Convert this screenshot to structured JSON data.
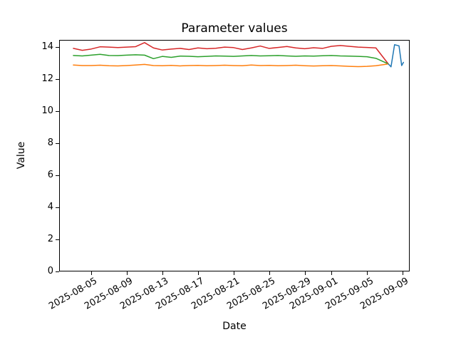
{
  "figure": {
    "background_color": "#ffffff",
    "axes_edge_color": "#000000"
  },
  "chart_data": {
    "type": "line",
    "title": "Parameter values",
    "xlabel": "Date",
    "ylabel": "Value",
    "grid": false,
    "legend_position": "none",
    "ylim": [
      0,
      14.45
    ],
    "y_ticks": [
      0,
      2,
      4,
      6,
      8,
      10,
      12,
      14
    ],
    "x_axis_note": "x values are day offsets from 2025-08-05",
    "xlim_day_offsets": [
      -3.6,
      35.8
    ],
    "x_ticks": [
      {
        "label": "2025-08-05",
        "day": 0
      },
      {
        "label": "2025-08-09",
        "day": 4
      },
      {
        "label": "2025-08-13",
        "day": 8
      },
      {
        "label": "2025-08-17",
        "day": 12
      },
      {
        "label": "2025-08-21",
        "day": 16
      },
      {
        "label": "2025-08-25",
        "day": 20
      },
      {
        "label": "2025-08-29",
        "day": 24
      },
      {
        "label": "2025-09-01",
        "day": 27
      },
      {
        "label": "2025-09-05",
        "day": 31
      },
      {
        "label": "2025-09-09",
        "day": 35
      }
    ],
    "series": [
      {
        "name": "red-line",
        "color": "#d62728",
        "points": [
          [
            -2,
            13.92
          ],
          [
            -1,
            13.8
          ],
          [
            0,
            13.88
          ],
          [
            1,
            14.02
          ],
          [
            2,
            14.0
          ],
          [
            3,
            13.97
          ],
          [
            4,
            14.0
          ],
          [
            5,
            14.03
          ],
          [
            6,
            14.28
          ],
          [
            7,
            13.95
          ],
          [
            8,
            13.82
          ],
          [
            9,
            13.88
          ],
          [
            10,
            13.92
          ],
          [
            11,
            13.85
          ],
          [
            12,
            13.95
          ],
          [
            13,
            13.9
          ],
          [
            14,
            13.93
          ],
          [
            15,
            14.0
          ],
          [
            16,
            13.97
          ],
          [
            17,
            13.85
          ],
          [
            18,
            13.95
          ],
          [
            19,
            14.07
          ],
          [
            20,
            13.92
          ],
          [
            21,
            13.98
          ],
          [
            22,
            14.04
          ],
          [
            23,
            13.95
          ],
          [
            24,
            13.9
          ],
          [
            25,
            13.96
          ],
          [
            26,
            13.92
          ],
          [
            27,
            14.05
          ],
          [
            28,
            14.1
          ],
          [
            29,
            14.05
          ],
          [
            30,
            14.0
          ],
          [
            31,
            13.98
          ],
          [
            32,
            13.95
          ],
          [
            33.4,
            12.95
          ]
        ]
      },
      {
        "name": "green-line",
        "color": "#2ca02c",
        "points": [
          [
            -2,
            13.48
          ],
          [
            -1,
            13.45
          ],
          [
            0,
            13.5
          ],
          [
            1,
            13.55
          ],
          [
            2,
            13.48
          ],
          [
            3,
            13.47
          ],
          [
            4,
            13.5
          ],
          [
            5,
            13.52
          ],
          [
            6,
            13.5
          ],
          [
            7,
            13.28
          ],
          [
            8,
            13.42
          ],
          [
            9,
            13.36
          ],
          [
            10,
            13.44
          ],
          [
            11,
            13.43
          ],
          [
            12,
            13.4
          ],
          [
            13,
            13.42
          ],
          [
            14,
            13.45
          ],
          [
            15,
            13.44
          ],
          [
            16,
            13.42
          ],
          [
            17,
            13.45
          ],
          [
            18,
            13.48
          ],
          [
            19,
            13.45
          ],
          [
            20,
            13.46
          ],
          [
            21,
            13.48
          ],
          [
            22,
            13.45
          ],
          [
            23,
            13.43
          ],
          [
            24,
            13.45
          ],
          [
            25,
            13.44
          ],
          [
            26,
            13.46
          ],
          [
            27,
            13.48
          ],
          [
            28,
            13.45
          ],
          [
            29,
            13.44
          ],
          [
            30,
            13.42
          ],
          [
            31,
            13.4
          ],
          [
            32,
            13.3
          ],
          [
            33.4,
            12.95
          ]
        ]
      },
      {
        "name": "orange-line",
        "color": "#ff7f0e",
        "points": [
          [
            -2,
            12.88
          ],
          [
            -1,
            12.85
          ],
          [
            0,
            12.85
          ],
          [
            1,
            12.87
          ],
          [
            2,
            12.84
          ],
          [
            3,
            12.83
          ],
          [
            4,
            12.85
          ],
          [
            5,
            12.88
          ],
          [
            6,
            12.92
          ],
          [
            7,
            12.85
          ],
          [
            8,
            12.84
          ],
          [
            9,
            12.86
          ],
          [
            10,
            12.83
          ],
          [
            11,
            12.85
          ],
          [
            12,
            12.86
          ],
          [
            13,
            12.84
          ],
          [
            14,
            12.85
          ],
          [
            15,
            12.87
          ],
          [
            16,
            12.85
          ],
          [
            17,
            12.84
          ],
          [
            18,
            12.88
          ],
          [
            19,
            12.85
          ],
          [
            20,
            12.86
          ],
          [
            21,
            12.84
          ],
          [
            22,
            12.85
          ],
          [
            23,
            12.87
          ],
          [
            24,
            12.84
          ],
          [
            25,
            12.82
          ],
          [
            26,
            12.84
          ],
          [
            27,
            12.85
          ],
          [
            28,
            12.83
          ],
          [
            29,
            12.8
          ],
          [
            30,
            12.78
          ],
          [
            31,
            12.8
          ],
          [
            32,
            12.84
          ],
          [
            33.4,
            12.95
          ]
        ]
      },
      {
        "name": "blue-line",
        "color": "#1f77b4",
        "points": [
          [
            33.4,
            12.95
          ],
          [
            33.7,
            12.77
          ],
          [
            34.1,
            14.15
          ],
          [
            34.6,
            14.08
          ],
          [
            34.9,
            12.85
          ],
          [
            35.1,
            13.05
          ]
        ]
      }
    ]
  }
}
